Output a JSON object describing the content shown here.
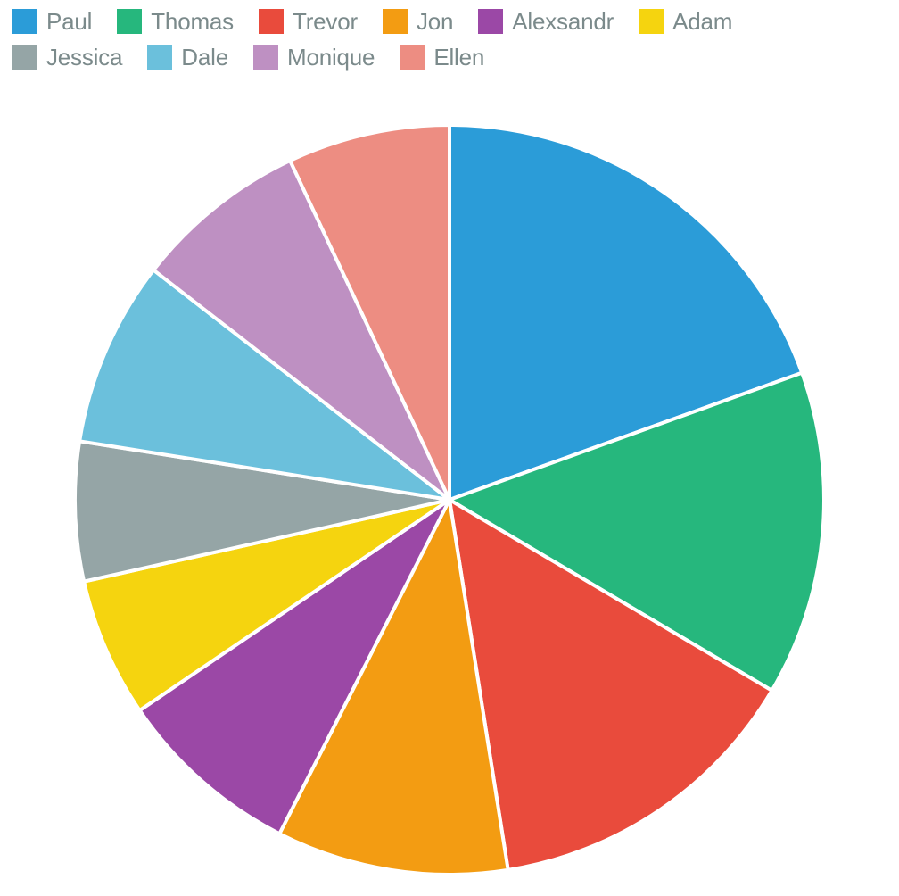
{
  "chart": {
    "type": "pie",
    "background_color": "#ffffff",
    "stroke_color": "#ffffff",
    "stroke_width": 4,
    "radius": 420,
    "start_angle_deg": 0,
    "legend": {
      "swatch_size": 28,
      "label_fontsize": 26,
      "label_color": "#7b8a8b"
    },
    "series": [
      {
        "label": "Paul",
        "value": 19.5,
        "color": "#2b9cd8"
      },
      {
        "label": "Thomas",
        "value": 14.0,
        "color": "#26b77d"
      },
      {
        "label": "Trevor",
        "value": 14.0,
        "color": "#e94b3c"
      },
      {
        "label": "Jon",
        "value": 10.0,
        "color": "#f39c12"
      },
      {
        "label": "Alexsandr",
        "value": 8.0,
        "color": "#9b48a6"
      },
      {
        "label": "Adam",
        "value": 6.0,
        "color": "#f5d40f"
      },
      {
        "label": "Jessica",
        "value": 6.0,
        "color": "#95a5a6"
      },
      {
        "label": "Dale",
        "value": 8.0,
        "color": "#6bc0dc"
      },
      {
        "label": "Monique",
        "value": 7.5,
        "color": "#be90c2"
      },
      {
        "label": "Ellen",
        "value": 7.0,
        "color": "#ed8d82"
      }
    ]
  }
}
